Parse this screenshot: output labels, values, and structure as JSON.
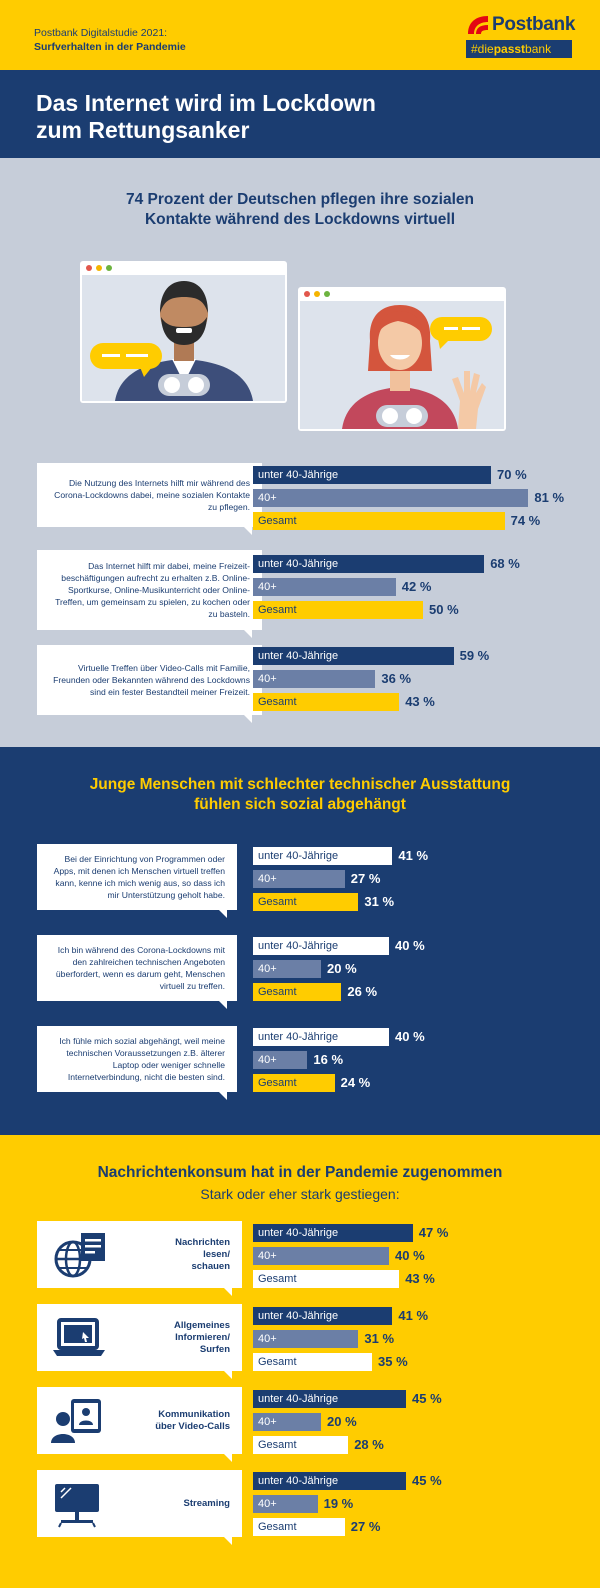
{
  "header": {
    "subtitle_line1": "Postbank Digitalstudie 2021:",
    "subtitle_line2": "Surfverhalten in der Pandemie",
    "logo_word": "Postbank",
    "logo_tag_prefix": "#die",
    "logo_tag_bold": "passt",
    "logo_tag_suffix": "bank"
  },
  "main_title": "Das Internet wird im Lockdown\nzum Rettungsanker",
  "colors": {
    "navy": "#1b3d71",
    "grey_blue": "#6b7fa6",
    "yellow": "#ffcc00",
    "white": "#ffffff",
    "light_grey": "#c6cdd9"
  },
  "series_labels": [
    "unter 40-Jährige",
    "40+",
    "Gesamt"
  ],
  "chart_data": [
    {
      "type": "bar",
      "title": "74 Prozent der Deutschen pflegen ihre sozialen\nKontakte während des Lockdowns virtuell",
      "unit": "%",
      "series": [
        {
          "name": "unter 40-Jährige"
        },
        {
          "name": "40+"
        },
        {
          "name": "Gesamt"
        }
      ],
      "categories": [
        "Die Nutzung des Internets hilft mir während des Corona-Lockdowns dabei, meine sozialen Kontakte zu pflegen.",
        "Das Internet hilft mir dabei, meine Freizeit-beschäftigungen aufrecht zu erhalten z.B. Online-Sportkurse, Online-Musikunterricht oder Online-Treffen, um gemeinsam zu spielen, zu kochen oder zu basteln.",
        "Virtuelle Treffen über Video-Calls mit Familie, Freunden oder Bekannten während des Lockdowns sind ein fester Bestandteil meiner Freizeit."
      ],
      "values": [
        [
          70,
          81,
          74
        ],
        [
          68,
          42,
          50
        ],
        [
          59,
          36,
          43
        ]
      ]
    },
    {
      "type": "bar",
      "title": "Junge Menschen mit schlechter technischer Ausstattung\nfühlen sich sozial abgehängt",
      "unit": "%",
      "series": [
        {
          "name": "unter 40-Jährige"
        },
        {
          "name": "40+"
        },
        {
          "name": "Gesamt"
        }
      ],
      "categories": [
        "Bei der Einrichtung von Programmen oder Apps, mit denen ich Menschen virtuell treffen kann, kenne ich mich wenig aus, so dass ich mir Unterstützung geholt habe.",
        "Ich bin während des Corona-Lockdowns mit den zahlreichen technischen Angeboten überfordert, wenn es darum geht, Menschen virtuell zu treffen.",
        "Ich fühle mich sozial abgehängt, weil meine technischen Voraussetzungen z.B. älterer Laptop oder weniger schnelle Internetverbindung, nicht die besten sind."
      ],
      "values": [
        [
          41,
          27,
          31
        ],
        [
          40,
          20,
          26
        ],
        [
          40,
          16,
          24
        ]
      ]
    },
    {
      "type": "bar",
      "title": "Nachrichtenkonsum hat in der Pandemie zugenommen",
      "subtitle": "Stark oder eher stark gestiegen:",
      "unit": "%",
      "series": [
        {
          "name": "unter 40-Jährige"
        },
        {
          "name": "40+"
        },
        {
          "name": "Gesamt"
        }
      ],
      "categories": [
        "Nachrichten\nlesen/\nschauen",
        "Allgemeines\nInformieren/\nSurfen",
        "Kommunikation\nüber Video-Calls",
        "Streaming"
      ],
      "icons": [
        "globe-news-icon",
        "laptop-icon",
        "video-call-icon",
        "tv-streaming-icon"
      ],
      "values": [
        [
          47,
          40,
          43
        ],
        [
          41,
          31,
          35
        ],
        [
          45,
          20,
          28
        ],
        [
          45,
          19,
          27
        ]
      ]
    }
  ]
}
